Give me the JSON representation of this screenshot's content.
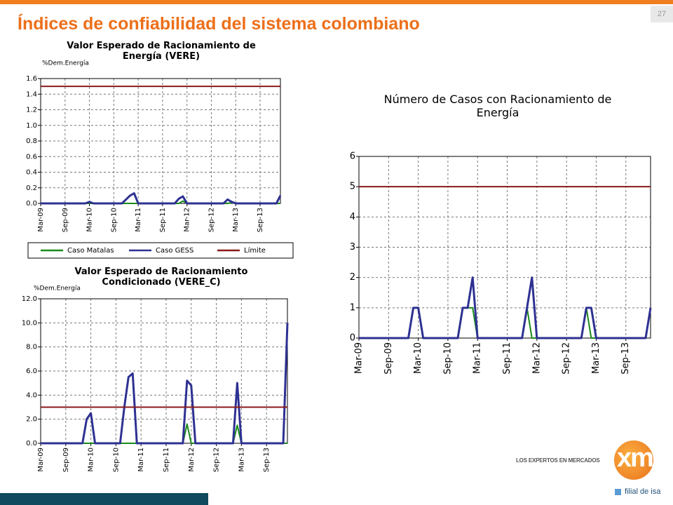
{
  "slide": {
    "title": "Índices de confiabilidad del sistema colombiano",
    "page": "27",
    "logo_tagline": "LOS EXPERTOS EN MERCADOS",
    "logo": "xm",
    "logo_sub": "filial de isa"
  },
  "chart_data": [
    {
      "type": "line",
      "title": "Valor Esperado de Racionamiento de Energía (VERE)",
      "ylabel": "%Dem.Energía",
      "categories": [
        "Mar-09",
        null,
        null,
        null,
        null,
        null,
        "Sep-09",
        null,
        null,
        null,
        null,
        null,
        "Mar-10",
        null,
        null,
        null,
        null,
        null,
        "Sep-10",
        null,
        null,
        null,
        null,
        null,
        "Mar-11",
        null,
        null,
        null,
        null,
        null,
        "Sep-11",
        null,
        null,
        null,
        null,
        null,
        "Mar-12",
        null,
        null,
        null,
        null,
        null,
        "Sep-12",
        null,
        null,
        null,
        null,
        null,
        "Mar-13",
        null,
        null,
        null,
        null,
        null,
        "Sep-13",
        null,
        null,
        null,
        null,
        null
      ],
      "series": [
        {
          "name": "Caso Matalas",
          "color": "#1a8a1a",
          "values": [
            0,
            0,
            0,
            0,
            0,
            0,
            0,
            0,
            0,
            0,
            0,
            0,
            0,
            0,
            0,
            0,
            0,
            0,
            0,
            0,
            0,
            0,
            0,
            0,
            0,
            0,
            0,
            0,
            0,
            0,
            0,
            0,
            0,
            0,
            0,
            0.03,
            0,
            0,
            0,
            0,
            0,
            0,
            0,
            0,
            0,
            0,
            0,
            0.01,
            0,
            0,
            0,
            0,
            0,
            0,
            0,
            0,
            0,
            0,
            0,
            0
          ]
        },
        {
          "name": "Caso GESS",
          "color": "#2e3192",
          "values": [
            0,
            0,
            0,
            0,
            0,
            0,
            0,
            0,
            0,
            0,
            0,
            0,
            0.02,
            0,
            0,
            0,
            0,
            0,
            0,
            0,
            0,
            0.05,
            0.1,
            0.13,
            0,
            0,
            0,
            0,
            0,
            0,
            0,
            0,
            0,
            0,
            0.06,
            0.09,
            0,
            0,
            0,
            0,
            0,
            0,
            0,
            0,
            0,
            0,
            0.05,
            0.02,
            0,
            0,
            0,
            0,
            0,
            0,
            0,
            0,
            0,
            0,
            0,
            0.1
          ]
        },
        {
          "name": "Límite",
          "color": "#8b1a1a",
          "values": [
            1.5,
            1.5,
            1.5,
            1.5,
            1.5,
            1.5,
            1.5,
            1.5,
            1.5,
            1.5,
            1.5,
            1.5,
            1.5,
            1.5,
            1.5,
            1.5,
            1.5,
            1.5,
            1.5,
            1.5,
            1.5,
            1.5,
            1.5,
            1.5,
            1.5,
            1.5,
            1.5,
            1.5,
            1.5,
            1.5,
            1.5,
            1.5,
            1.5,
            1.5,
            1.5,
            1.5,
            1.5,
            1.5,
            1.5,
            1.5,
            1.5,
            1.5,
            1.5,
            1.5,
            1.5,
            1.5,
            1.5,
            1.5,
            1.5,
            1.5,
            1.5,
            1.5,
            1.5,
            1.5,
            1.5,
            1.5,
            1.5,
            1.5,
            1.5,
            1.5
          ]
        }
      ],
      "ylim": [
        0,
        1.6
      ],
      "yticks": [
        {
          "value": 0,
          "label": "0.0"
        },
        0.2,
        0.4,
        0.6,
        0.8,
        {
          "value": 1,
          "label": "1.0"
        },
        1.2,
        1.4,
        1.6
      ],
      "grid": true,
      "legend": "bottom"
    },
    {
      "type": "line",
      "title": "Valor Esperado de Racionamiento Condicionado (VERE_C)",
      "ylabel": "%Dem.Energía",
      "categories": [
        "Mar-09",
        null,
        null,
        null,
        null,
        null,
        "Sep-09",
        null,
        null,
        null,
        null,
        null,
        "Mar-10",
        null,
        null,
        null,
        null,
        null,
        "Sep-10",
        null,
        null,
        null,
        null,
        null,
        "Mar-11",
        null,
        null,
        null,
        null,
        null,
        "Sep-11",
        null,
        null,
        null,
        null,
        null,
        "Mar-12",
        null,
        null,
        null,
        null,
        null,
        "Sep-12",
        null,
        null,
        null,
        null,
        null,
        "Mar-13",
        null,
        null,
        null,
        null,
        null,
        "Sep-13",
        null,
        null,
        null,
        null,
        null
      ],
      "series": [
        {
          "name": "Caso Matalas",
          "color": "#1a8a1a",
          "values": [
            0,
            0,
            0,
            0,
            0,
            0,
            0,
            0,
            0,
            0,
            0,
            0,
            0,
            0,
            0,
            0,
            0,
            0,
            0,
            0,
            0,
            0,
            0,
            0,
            0,
            0,
            0,
            0,
            0,
            0,
            0,
            0,
            0,
            0,
            0,
            1.6,
            0,
            0,
            0,
            0,
            0,
            0,
            0,
            0,
            0,
            0,
            0,
            1.5,
            0,
            0,
            0,
            0,
            0,
            0,
            0,
            0,
            0,
            0,
            0,
            0
          ]
        },
        {
          "name": "Caso GESS",
          "color": "#2e3192",
          "values": [
            0,
            0,
            0,
            0,
            0,
            0,
            0,
            0,
            0,
            0,
            0,
            2.0,
            2.5,
            0,
            0,
            0,
            0,
            0,
            0,
            0,
            3.0,
            5.5,
            5.8,
            0,
            0,
            0,
            0,
            0,
            0,
            0,
            0,
            0,
            0,
            0,
            0,
            5.2,
            4.8,
            0,
            0,
            0,
            0,
            0,
            0,
            0,
            0,
            0,
            0,
            5.0,
            0,
            0,
            0,
            0,
            0,
            0,
            0,
            0,
            0,
            0,
            0,
            10.0
          ]
        },
        {
          "name": "Límite",
          "color": "#8b1a1a",
          "values": [
            3,
            3,
            3,
            3,
            3,
            3,
            3,
            3,
            3,
            3,
            3,
            3,
            3,
            3,
            3,
            3,
            3,
            3,
            3,
            3,
            3,
            3,
            3,
            3,
            3,
            3,
            3,
            3,
            3,
            3,
            3,
            3,
            3,
            3,
            3,
            3,
            3,
            3,
            3,
            3,
            3,
            3,
            3,
            3,
            3,
            3,
            3,
            3,
            3,
            3,
            3,
            3,
            3,
            3,
            3,
            3,
            3,
            3,
            3,
            3
          ]
        }
      ],
      "ylim": [
        0,
        12
      ],
      "yticks": [
        {
          "value": 0,
          "label": "0.0"
        },
        {
          "value": 2,
          "label": "2.0"
        },
        {
          "value": 4,
          "label": "4.0"
        },
        {
          "value": 6,
          "label": "6.0"
        },
        {
          "value": 8,
          "label": "8.0"
        },
        {
          "value": 10,
          "label": "10.0"
        },
        {
          "value": 12,
          "label": "12.0"
        }
      ],
      "grid": true
    },
    {
      "type": "line",
      "title": "Número de Casos con Racionamiento de Energía",
      "categories": [
        "Mar-09",
        null,
        null,
        null,
        null,
        null,
        "Sep-09",
        null,
        null,
        null,
        null,
        null,
        "Mar-10",
        null,
        null,
        null,
        null,
        null,
        "Sep-10",
        null,
        null,
        null,
        null,
        null,
        "Mar-11",
        null,
        null,
        null,
        null,
        null,
        "Sep-11",
        null,
        null,
        null,
        null,
        null,
        "Mar-12",
        null,
        null,
        null,
        null,
        null,
        "Sep-12",
        null,
        null,
        null,
        null,
        null,
        "Mar-13",
        null,
        null,
        null,
        null,
        null,
        "Sep-13",
        null,
        null,
        null,
        null,
        null
      ],
      "series": [
        {
          "name": "Caso Matalas",
          "color": "#1a8a1a",
          "values": [
            0,
            0,
            0,
            0,
            0,
            0,
            0,
            0,
            0,
            0,
            0,
            1,
            1,
            0,
            0,
            0,
            0,
            0,
            0,
            0,
            0,
            1,
            1,
            1,
            0,
            0,
            0,
            0,
            0,
            0,
            0,
            0,
            0,
            0,
            1,
            0,
            0,
            0,
            0,
            0,
            0,
            0,
            0,
            0,
            0,
            0,
            1,
            0,
            0,
            0,
            0,
            0,
            0,
            0,
            0,
            0,
            0,
            0,
            0,
            1
          ]
        },
        {
          "name": "Caso GESS",
          "color": "#2e3192",
          "values": [
            0,
            0,
            0,
            0,
            0,
            0,
            0,
            0,
            0,
            0,
            0,
            1,
            1,
            0,
            0,
            0,
            0,
            0,
            0,
            0,
            0,
            1,
            1,
            2,
            0,
            0,
            0,
            0,
            0,
            0,
            0,
            0,
            0,
            0,
            1,
            2,
            0,
            0,
            0,
            0,
            0,
            0,
            0,
            0,
            0,
            0,
            1,
            1,
            0,
            0,
            0,
            0,
            0,
            0,
            0,
            0,
            0,
            0,
            0,
            1
          ]
        },
        {
          "name": "Límite",
          "color": "#8b1a1a",
          "values": [
            5,
            5,
            5,
            5,
            5,
            5,
            5,
            5,
            5,
            5,
            5,
            5,
            5,
            5,
            5,
            5,
            5,
            5,
            5,
            5,
            5,
            5,
            5,
            5,
            5,
            5,
            5,
            5,
            5,
            5,
            5,
            5,
            5,
            5,
            5,
            5,
            5,
            5,
            5,
            5,
            5,
            5,
            5,
            5,
            5,
            5,
            5,
            5,
            5,
            5,
            5,
            5,
            5,
            5,
            5,
            5,
            5,
            5,
            5,
            5
          ]
        }
      ],
      "ylim": [
        0,
        6
      ],
      "yticks": [
        0,
        1,
        2,
        3,
        4,
        5,
        6
      ],
      "grid": true
    }
  ]
}
